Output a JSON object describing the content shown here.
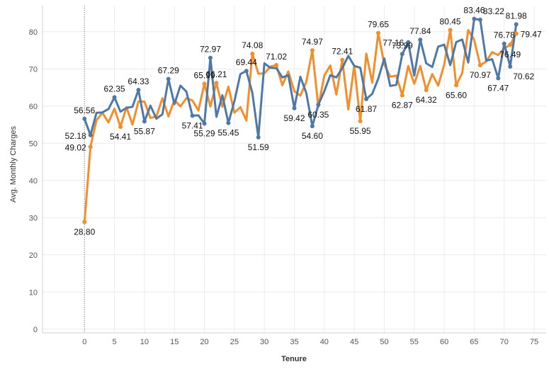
{
  "chart_data": {
    "type": "line",
    "xlabel": "Tenure",
    "ylabel": "Avg. Monthly Charges",
    "xlim": [
      -7,
      77
    ],
    "ylim": [
      -1,
      87
    ],
    "x_ticks": [
      0,
      5,
      10,
      15,
      20,
      25,
      30,
      35,
      40,
      45,
      50,
      55,
      60,
      65,
      70,
      75
    ],
    "y_ticks": [
      0,
      10,
      20,
      30,
      40,
      50,
      60,
      70,
      80
    ],
    "grid": true,
    "reference_line_x": 0,
    "series": [
      {
        "color": "#4e79a7",
        "points": [
          [
            0,
            56.56
          ],
          [
            1,
            52.18
          ],
          [
            2,
            58.2
          ],
          [
            3,
            58.3
          ],
          [
            4,
            59.2
          ],
          [
            5,
            62.35
          ],
          [
            6,
            58.5
          ],
          [
            7,
            59.5
          ],
          [
            8,
            59.8
          ],
          [
            9,
            64.33
          ],
          [
            10,
            55.87
          ],
          [
            11,
            60.1
          ],
          [
            12,
            56.6
          ],
          [
            13,
            57.8
          ],
          [
            14,
            67.29
          ],
          [
            15,
            60.5
          ],
          [
            16,
            65.5
          ],
          [
            17,
            63.9
          ],
          [
            18,
            57.41
          ],
          [
            19,
            57.5
          ],
          [
            20,
            55.29
          ],
          [
            21,
            72.97
          ],
          [
            22,
            57.1
          ],
          [
            23,
            62.9
          ],
          [
            24,
            55.45
          ],
          [
            25,
            61.3
          ],
          [
            26,
            68.6
          ],
          [
            27,
            69.44
          ],
          [
            28,
            63.5
          ],
          [
            29,
            51.59
          ],
          [
            30,
            71.5
          ],
          [
            31,
            70.3
          ],
          [
            32,
            70.2
          ],
          [
            33,
            67.7
          ],
          [
            34,
            68.3
          ],
          [
            35,
            59.42
          ],
          [
            36,
            67.9
          ],
          [
            37,
            63.5
          ],
          [
            38,
            54.6
          ],
          [
            39,
            60.35
          ],
          [
            40,
            64.0
          ],
          [
            41,
            68.3
          ],
          [
            42,
            67.7
          ],
          [
            43,
            70.2
          ],
          [
            44,
            73.5
          ],
          [
            45,
            70.8
          ],
          [
            46,
            70.3
          ],
          [
            47,
            61.87
          ],
          [
            48,
            63.3
          ],
          [
            49,
            67.4
          ],
          [
            50,
            72.8
          ],
          [
            51,
            65.4
          ],
          [
            52,
            65.7
          ],
          [
            53,
            73.99
          ],
          [
            54,
            77.16
          ],
          [
            55,
            68.2
          ],
          [
            56,
            77.84
          ],
          [
            57,
            71.5
          ],
          [
            58,
            70.5
          ],
          [
            59,
            76.0
          ],
          [
            60,
            76.5
          ],
          [
            61,
            71.0
          ],
          [
            62,
            77.2
          ],
          [
            63,
            77.9
          ],
          [
            64,
            71.7
          ],
          [
            65,
            83.46
          ],
          [
            66,
            83.22
          ],
          [
            67,
            72.2
          ],
          [
            68,
            72.6
          ],
          [
            69,
            67.47
          ],
          [
            70,
            76.78
          ],
          [
            71,
            70.62
          ],
          [
            72,
            81.98
          ]
        ]
      },
      {
        "color": "#f28e2b",
        "points": [
          [
            0,
            28.8
          ],
          [
            1,
            49.02
          ],
          [
            2,
            56.2
          ],
          [
            3,
            58.2
          ],
          [
            4,
            55.6
          ],
          [
            5,
            59.3
          ],
          [
            6,
            54.41
          ],
          [
            7,
            59.7
          ],
          [
            8,
            55.0
          ],
          [
            9,
            61.2
          ],
          [
            10,
            61.2
          ],
          [
            11,
            56.8
          ],
          [
            12,
            57.2
          ],
          [
            13,
            62.1
          ],
          [
            14,
            57.2
          ],
          [
            15,
            61.6
          ],
          [
            16,
            59.9
          ],
          [
            17,
            62.1
          ],
          [
            18,
            61.5
          ],
          [
            19,
            58.8
          ],
          [
            20,
            65.99
          ],
          [
            21,
            59.9
          ],
          [
            22,
            66.21
          ],
          [
            23,
            59.8
          ],
          [
            24,
            65.2
          ],
          [
            25,
            58.2
          ],
          [
            26,
            59.7
          ],
          [
            27,
            56.1
          ],
          [
            28,
            74.08
          ],
          [
            29,
            68.7
          ],
          [
            30,
            68.8
          ],
          [
            31,
            70.6
          ],
          [
            32,
            71.02
          ],
          [
            33,
            65.6
          ],
          [
            34,
            69.3
          ],
          [
            35,
            64.0
          ],
          [
            36,
            62.8
          ],
          [
            37,
            66.5
          ],
          [
            38,
            74.97
          ],
          [
            39,
            59.8
          ],
          [
            40,
            68.2
          ],
          [
            41,
            70.9
          ],
          [
            42,
            63.1
          ],
          [
            43,
            72.41
          ],
          [
            44,
            59.1
          ],
          [
            45,
            70.9
          ],
          [
            46,
            55.95
          ],
          [
            47,
            74.1
          ],
          [
            48,
            66.3
          ],
          [
            49,
            79.65
          ],
          [
            50,
            71.2
          ],
          [
            51,
            67.9
          ],
          [
            52,
            68.2
          ],
          [
            53,
            62.87
          ],
          [
            54,
            70.8
          ],
          [
            55,
            66.0
          ],
          [
            56,
            70.8
          ],
          [
            57,
            64.32
          ],
          [
            58,
            68.6
          ],
          [
            59,
            65.5
          ],
          [
            60,
            71.2
          ],
          [
            61,
            80.45
          ],
          [
            62,
            65.6
          ],
          [
            63,
            68.9
          ],
          [
            64,
            80.45
          ],
          [
            65,
            77.8
          ],
          [
            66,
            70.97
          ],
          [
            67,
            72.0
          ],
          [
            68,
            74.5
          ],
          [
            69,
            73.7
          ],
          [
            70,
            75.5
          ],
          [
            71,
            76.49
          ],
          [
            72,
            79.47
          ]
        ]
      }
    ],
    "data_labels": [
      {
        "series": 0,
        "x": 0,
        "text": "56.56",
        "pos": "above"
      },
      {
        "series": 0,
        "x": 1,
        "text": "52.18",
        "pos": "left"
      },
      {
        "series": 1,
        "x": 1,
        "text": "49.02",
        "pos": "left"
      },
      {
        "series": 1,
        "x": 0,
        "text": "28.80",
        "pos": "below"
      },
      {
        "series": 0,
        "x": 5,
        "text": "62.35",
        "pos": "above"
      },
      {
        "series": 1,
        "x": 6,
        "text": "54.41",
        "pos": "below"
      },
      {
        "series": 0,
        "x": 9,
        "text": "64.33",
        "pos": "above"
      },
      {
        "series": 0,
        "x": 10,
        "text": "55.87",
        "pos": "below"
      },
      {
        "series": 0,
        "x": 14,
        "text": "67.29",
        "pos": "above"
      },
      {
        "series": 0,
        "x": 18,
        "text": "57.41",
        "pos": "below"
      },
      {
        "series": 1,
        "x": 20,
        "text": "65.99",
        "pos": "above"
      },
      {
        "series": 0,
        "x": 20,
        "text": "55.29",
        "pos": "below"
      },
      {
        "series": 0,
        "x": 21,
        "text": "72.97",
        "pos": "above"
      },
      {
        "series": 1,
        "x": 22,
        "text": "66.21",
        "pos": "above"
      },
      {
        "series": 0,
        "x": 27,
        "text": "69.44",
        "pos": "above"
      },
      {
        "series": 0,
        "x": 24,
        "text": "55.45",
        "pos": "below"
      },
      {
        "series": 1,
        "x": 28,
        "text": "74.08",
        "pos": "above"
      },
      {
        "series": 0,
        "x": 29,
        "text": "51.59",
        "pos": "below"
      },
      {
        "series": 1,
        "x": 32,
        "text": "71.02",
        "pos": "above"
      },
      {
        "series": 0,
        "x": 35,
        "text": "59.42",
        "pos": "below"
      },
      {
        "series": 1,
        "x": 38,
        "text": "74.97",
        "pos": "above"
      },
      {
        "series": 0,
        "x": 38,
        "text": "54.60",
        "pos": "below"
      },
      {
        "series": 1,
        "x": 43,
        "text": "72.41",
        "pos": "above"
      },
      {
        "series": 0,
        "x": 39,
        "text": "60.35",
        "pos": "below"
      },
      {
        "series": 0,
        "x": 53,
        "text": "73.99",
        "pos": "above"
      },
      {
        "series": 1,
        "x": 46,
        "text": "55.95",
        "pos": "below"
      },
      {
        "series": 0,
        "x": 47,
        "text": "61.87",
        "pos": "below"
      },
      {
        "series": 1,
        "x": 49,
        "text": "79.65",
        "pos": "above"
      },
      {
        "series": 0,
        "x": 54,
        "text": "77.16",
        "pos": "left"
      },
      {
        "series": 1,
        "x": 53,
        "text": "62.87",
        "pos": "below"
      },
      {
        "series": 0,
        "x": 56,
        "text": "77.84",
        "pos": "above"
      },
      {
        "series": 1,
        "x": 57,
        "text": "64.32",
        "pos": "below"
      },
      {
        "series": 1,
        "x": 61,
        "text": "80.45",
        "pos": "above"
      },
      {
        "series": 1,
        "x": 62,
        "text": "65.60",
        "pos": "below"
      },
      {
        "series": 0,
        "x": 65,
        "text": "83.46",
        "pos": "above"
      },
      {
        "series": 0,
        "x": 66,
        "text": "83.22",
        "pos": "above-right"
      },
      {
        "series": 1,
        "x": 66,
        "text": "70.97",
        "pos": "below"
      },
      {
        "series": 0,
        "x": 69,
        "text": "67.47",
        "pos": "below"
      },
      {
        "series": 0,
        "x": 70,
        "text": "76.78",
        "pos": "above"
      },
      {
        "series": 1,
        "x": 71,
        "text": "76.49",
        "pos": "below"
      },
      {
        "series": 0,
        "x": 71,
        "text": "70.62",
        "pos": "below-right"
      },
      {
        "series": 0,
        "x": 72,
        "text": "81.98",
        "pos": "above"
      },
      {
        "series": 1,
        "x": 72,
        "text": "79.47",
        "pos": "right"
      }
    ]
  }
}
